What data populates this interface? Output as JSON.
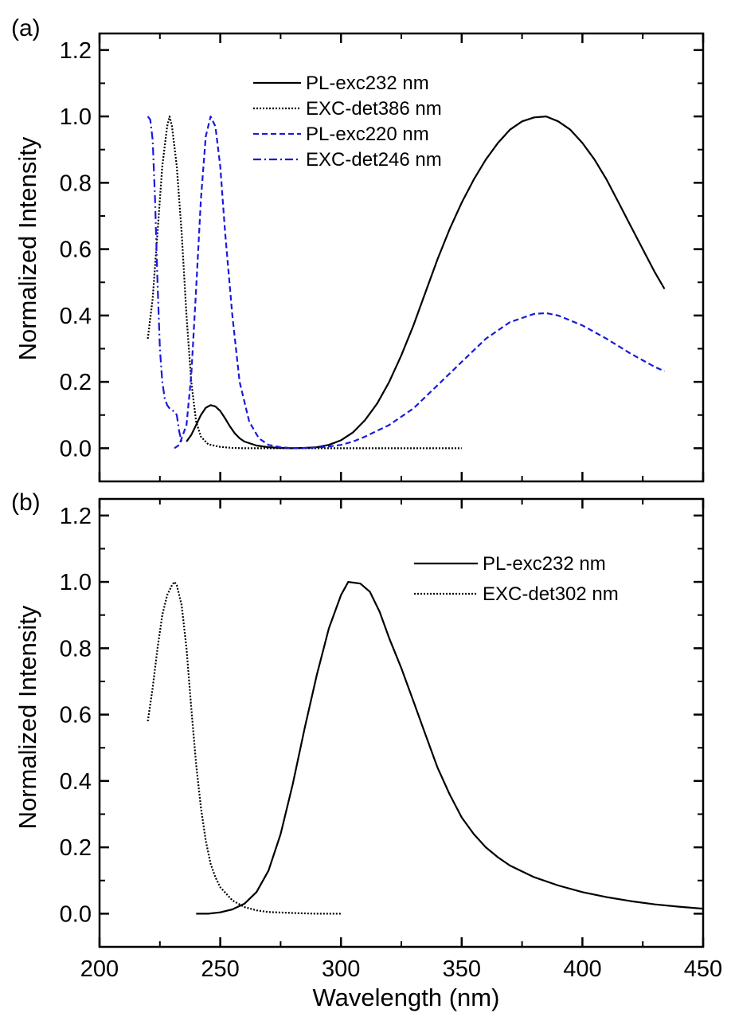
{
  "chart_data": [
    {
      "panel_label": "(a)",
      "type": "line",
      "xlabel": "Wavelength (nm)",
      "ylabel": "Normalized Intensity",
      "xlim": [
        200,
        450
      ],
      "ylim": [
        -0.1,
        1.25
      ],
      "x_ticks": [
        200,
        250,
        300,
        350,
        400,
        450
      ],
      "y_ticks": [
        0.0,
        0.2,
        0.4,
        0.6,
        0.8,
        1.0,
        1.2
      ],
      "y_tick_labels": [
        "0.0",
        "0.2",
        "0.4",
        "0.6",
        "0.8",
        "1.0",
        "1.2"
      ],
      "show_x_tick_labels": false,
      "legend_position": "top-center",
      "series": [
        {
          "name": "PL-exc232 nm",
          "color": "#000000",
          "style": "solid",
          "points": [
            [
              236,
              0.02
            ],
            [
              238,
              0.04
            ],
            [
              240,
              0.07
            ],
            [
              242,
              0.1
            ],
            [
              244,
              0.122
            ],
            [
              246,
              0.13
            ],
            [
              248,
              0.126
            ],
            [
              250,
              0.112
            ],
            [
              252,
              0.09
            ],
            [
              254,
              0.066
            ],
            [
              256,
              0.045
            ],
            [
              258,
              0.03
            ],
            [
              260,
              0.02
            ],
            [
              265,
              0.008
            ],
            [
              270,
              0.003
            ],
            [
              275,
              0.001
            ],
            [
              280,
              0.0
            ],
            [
              285,
              0.001
            ],
            [
              290,
              0.003
            ],
            [
              295,
              0.01
            ],
            [
              300,
              0.024
            ],
            [
              305,
              0.048
            ],
            [
              310,
              0.085
            ],
            [
              315,
              0.135
            ],
            [
              320,
              0.2
            ],
            [
              325,
              0.28
            ],
            [
              330,
              0.37
            ],
            [
              335,
              0.47
            ],
            [
              340,
              0.57
            ],
            [
              345,
              0.66
            ],
            [
              350,
              0.74
            ],
            [
              355,
              0.81
            ],
            [
              360,
              0.87
            ],
            [
              365,
              0.92
            ],
            [
              370,
              0.96
            ],
            [
              375,
              0.985
            ],
            [
              380,
              0.997
            ],
            [
              385,
              1.0
            ],
            [
              390,
              0.985
            ],
            [
              395,
              0.96
            ],
            [
              400,
              0.92
            ],
            [
              405,
              0.87
            ],
            [
              410,
              0.81
            ],
            [
              415,
              0.74
            ],
            [
              420,
              0.67
            ],
            [
              425,
              0.6
            ],
            [
              430,
              0.53
            ],
            [
              434,
              0.48
            ]
          ]
        },
        {
          "name": "EXC-det386 nm",
          "color": "#000000",
          "style": "dotted",
          "points": [
            [
              220,
              0.33
            ],
            [
              222,
              0.45
            ],
            [
              224,
              0.65
            ],
            [
              226,
              0.85
            ],
            [
              228,
              0.97
            ],
            [
              229,
              1.0
            ],
            [
              230,
              0.97
            ],
            [
              232,
              0.85
            ],
            [
              234,
              0.65
            ],
            [
              236,
              0.4
            ],
            [
              238,
              0.2
            ],
            [
              240,
              0.08
            ],
            [
              242,
              0.035
            ],
            [
              245,
              0.012
            ],
            [
              250,
              0.004
            ],
            [
              255,
              0.001
            ],
            [
              260,
              0.0
            ],
            [
              300,
              0.0
            ],
            [
              350,
              0.0
            ]
          ]
        },
        {
          "name": "PL-exc220 nm",
          "color": "#1a1adc",
          "style": "dashed",
          "points": [
            [
              231,
              0.0
            ],
            [
              233,
              0.01
            ],
            [
              236,
              0.07
            ],
            [
              238,
              0.22
            ],
            [
              240,
              0.48
            ],
            [
              242,
              0.75
            ],
            [
              244,
              0.94
            ],
            [
              246,
              1.0
            ],
            [
              248,
              0.97
            ],
            [
              250,
              0.85
            ],
            [
              252,
              0.65
            ],
            [
              255,
              0.4
            ],
            [
              258,
              0.2
            ],
            [
              262,
              0.08
            ],
            [
              266,
              0.03
            ],
            [
              270,
              0.01
            ],
            [
              275,
              0.003
            ],
            [
              280,
              0.0
            ],
            [
              285,
              0.001
            ],
            [
              290,
              0.002
            ],
            [
              295,
              0.005
            ],
            [
              300,
              0.01
            ],
            [
              305,
              0.02
            ],
            [
              310,
              0.035
            ],
            [
              320,
              0.07
            ],
            [
              330,
              0.12
            ],
            [
              340,
              0.19
            ],
            [
              350,
              0.26
            ],
            [
              360,
              0.33
            ],
            [
              370,
              0.38
            ],
            [
              380,
              0.405
            ],
            [
              385,
              0.407
            ],
            [
              390,
              0.4
            ],
            [
              400,
              0.37
            ],
            [
              410,
              0.33
            ],
            [
              420,
              0.285
            ],
            [
              430,
              0.245
            ],
            [
              434,
              0.232
            ]
          ]
        },
        {
          "name": "EXC-det246 nm",
          "color": "#1a1adc",
          "style": "dashdot",
          "points": [
            [
              220,
              1.0
            ],
            [
              221,
              0.99
            ],
            [
              222,
              0.93
            ],
            [
              223,
              0.75
            ],
            [
              224,
              0.5
            ],
            [
              225,
              0.3
            ],
            [
              226,
              0.2
            ],
            [
              227,
              0.15
            ],
            [
              228,
              0.13
            ],
            [
              229,
              0.12
            ],
            [
              230,
              0.115
            ],
            [
              231,
              0.11
            ],
            [
              232,
              0.1
            ],
            [
              233,
              0.05
            ],
            [
              234,
              0.02
            ]
          ]
        }
      ]
    },
    {
      "panel_label": "(b)",
      "type": "line",
      "xlabel": "Wavelength (nm)",
      "ylabel": "Normalized Intensity",
      "xlim": [
        200,
        450
      ],
      "ylim": [
        -0.1,
        1.25
      ],
      "x_ticks": [
        200,
        250,
        300,
        350,
        400,
        450
      ],
      "y_ticks": [
        0.0,
        0.2,
        0.4,
        0.6,
        0.8,
        1.0,
        1.2
      ],
      "y_tick_labels": [
        "0.0",
        "0.2",
        "0.4",
        "0.6",
        "0.8",
        "1.0",
        "1.2"
      ],
      "x_tick_labels": [
        "200",
        "250",
        "300",
        "350",
        "400",
        "450"
      ],
      "show_x_tick_labels": true,
      "legend_position": "top-right",
      "series": [
        {
          "name": "PL-exc232 nm",
          "color": "#000000",
          "style": "solid",
          "points": [
            [
              240,
              0.0
            ],
            [
              245,
              0.0
            ],
            [
              250,
              0.004
            ],
            [
              255,
              0.013
            ],
            [
              260,
              0.03
            ],
            [
              265,
              0.065
            ],
            [
              270,
              0.13
            ],
            [
              275,
              0.24
            ],
            [
              280,
              0.39
            ],
            [
              285,
              0.56
            ],
            [
              290,
              0.72
            ],
            [
              295,
              0.86
            ],
            [
              300,
              0.96
            ],
            [
              303,
              1.0
            ],
            [
              308,
              0.995
            ],
            [
              312,
              0.97
            ],
            [
              316,
              0.91
            ],
            [
              320,
              0.83
            ],
            [
              325,
              0.74
            ],
            [
              330,
              0.64
            ],
            [
              335,
              0.54
            ],
            [
              340,
              0.44
            ],
            [
              345,
              0.36
            ],
            [
              350,
              0.29
            ],
            [
              355,
              0.24
            ],
            [
              360,
              0.2
            ],
            [
              365,
              0.17
            ],
            [
              370,
              0.145
            ],
            [
              380,
              0.11
            ],
            [
              390,
              0.085
            ],
            [
              400,
              0.065
            ],
            [
              410,
              0.05
            ],
            [
              420,
              0.038
            ],
            [
              430,
              0.028
            ],
            [
              440,
              0.021
            ],
            [
              450,
              0.015
            ]
          ]
        },
        {
          "name": "EXC-det302 nm",
          "color": "#000000",
          "style": "dotted",
          "points": [
            [
              220,
              0.58
            ],
            [
              222,
              0.68
            ],
            [
              224,
              0.8
            ],
            [
              226,
              0.9
            ],
            [
              228,
              0.96
            ],
            [
              230,
              0.99
            ],
            [
              231,
              1.0
            ],
            [
              232,
              0.99
            ],
            [
              234,
              0.93
            ],
            [
              236,
              0.8
            ],
            [
              238,
              0.62
            ],
            [
              240,
              0.45
            ],
            [
              242,
              0.32
            ],
            [
              244,
              0.22
            ],
            [
              246,
              0.15
            ],
            [
              248,
              0.11
            ],
            [
              250,
              0.08
            ],
            [
              255,
              0.04
            ],
            [
              260,
              0.02
            ],
            [
              265,
              0.01
            ],
            [
              270,
              0.005
            ],
            [
              280,
              0.002
            ],
            [
              290,
              0.0
            ],
            [
              300,
              0.0
            ]
          ]
        }
      ]
    }
  ]
}
